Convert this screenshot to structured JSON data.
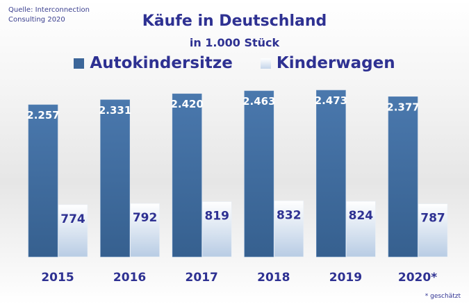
{
  "source": [
    "Quelle: Interconnection",
    "Consulting 2020"
  ],
  "footnote": "* geschätzt",
  "chart_data": {
    "type": "bar",
    "title": "Käufe in Deutschland",
    "subtitle": "in 1.000 Stück",
    "categories": [
      "2015",
      "2016",
      "2017",
      "2018",
      "2019",
      "2020*"
    ],
    "series": [
      {
        "name": "Autokindersitze",
        "values": [
          2257,
          2331,
          2420,
          2463,
          2473,
          2377
        ],
        "labels": [
          "2.257",
          "2.331",
          "2.420",
          "2.463",
          "2.473",
          "2.377"
        ],
        "color": "#3c6699"
      },
      {
        "name": "Kinderwagen",
        "values": [
          774,
          792,
          819,
          832,
          824,
          787
        ],
        "labels": [
          "774",
          "792",
          "819",
          "832",
          "824",
          "787"
        ],
        "color": "#c5d5ea"
      }
    ],
    "legend": "top",
    "grid": false,
    "ylim": [
      0,
      2500
    ]
  }
}
